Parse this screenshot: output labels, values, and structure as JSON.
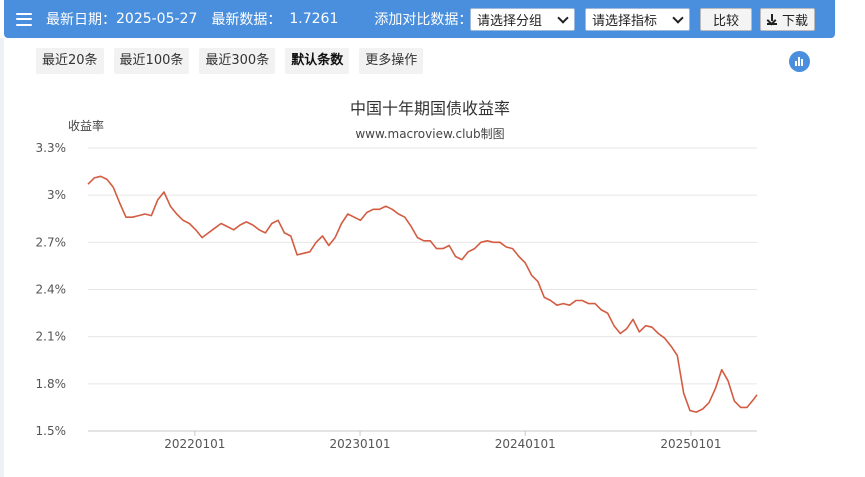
{
  "toolbar": {
    "latest_date_label": "最新日期：",
    "latest_date": "2025-05-27",
    "latest_value_label": "最新数据：",
    "latest_value": "1.7261",
    "compare_label": "添加对比数据：",
    "group_select": "请选择分组",
    "indicator_select": "请选择指标",
    "compare_button": "比较",
    "download_button": "下载"
  },
  "range_tabs": [
    "最近20条",
    "最近100条",
    "最近300条",
    "默认条数",
    "更多操作"
  ],
  "active_tab": "默认条数",
  "colors": {
    "bar": "#4a8fde",
    "line": "#d35c42"
  },
  "chart_data": {
    "type": "line",
    "title": "中国十年期国债收益率",
    "subtitle": "www.macroview.club制图",
    "ylabel": "收益率",
    "xlabel": "",
    "ylim": [
      1.5,
      3.3
    ],
    "y_ticks": [
      "3.3%",
      "3%",
      "2.7%",
      "2.4%",
      "2.1%",
      "1.8%",
      "1.5%"
    ],
    "y_tick_values": [
      3.3,
      3.0,
      2.7,
      2.4,
      2.1,
      1.8,
      1.5
    ],
    "x_ticks": [
      "20220101",
      "20230101",
      "20240101",
      "20250101"
    ],
    "x_tick_dates": [
      "2022-01-01",
      "2023-01-01",
      "2024-01-01",
      "2025-01-01"
    ],
    "xlim": [
      "2021-05-10",
      "2025-05-27"
    ],
    "grid": true,
    "series": [
      {
        "x": [
          "2021-05-10",
          "2021-05-24",
          "2021-06-07",
          "2021-06-21",
          "2021-07-05",
          "2021-07-19",
          "2021-08-02",
          "2021-08-16",
          "2021-08-30",
          "2021-09-13",
          "2021-09-27",
          "2021-10-11",
          "2021-10-25",
          "2021-11-08",
          "2021-11-22",
          "2021-12-06",
          "2021-12-20",
          "2022-01-03",
          "2022-01-17",
          "2022-01-31",
          "2022-02-14",
          "2022-02-28",
          "2022-03-14",
          "2022-03-28",
          "2022-04-11",
          "2022-04-25",
          "2022-05-09",
          "2022-05-23",
          "2022-06-06",
          "2022-06-20",
          "2022-07-04",
          "2022-07-18",
          "2022-08-01",
          "2022-08-15",
          "2022-08-29",
          "2022-09-12",
          "2022-09-26",
          "2022-10-10",
          "2022-10-24",
          "2022-11-07",
          "2022-11-21",
          "2022-12-05",
          "2022-12-19",
          "2023-01-02",
          "2023-01-16",
          "2023-01-30",
          "2023-02-13",
          "2023-02-27",
          "2023-03-13",
          "2023-03-27",
          "2023-04-10",
          "2023-04-24",
          "2023-05-08",
          "2023-05-22",
          "2023-06-05",
          "2023-06-19",
          "2023-07-03",
          "2023-07-17",
          "2023-07-31",
          "2023-08-14",
          "2023-08-28",
          "2023-09-11",
          "2023-09-25",
          "2023-10-09",
          "2023-10-23",
          "2023-11-06",
          "2023-11-20",
          "2023-12-04",
          "2023-12-18",
          "2024-01-01",
          "2024-01-15",
          "2024-01-29",
          "2024-02-12",
          "2024-02-26",
          "2024-03-11",
          "2024-03-25",
          "2024-04-08",
          "2024-04-22",
          "2024-05-06",
          "2024-05-20",
          "2024-06-03",
          "2024-06-17",
          "2024-07-01",
          "2024-07-15",
          "2024-07-29",
          "2024-08-12",
          "2024-08-26",
          "2024-09-09",
          "2024-09-23",
          "2024-10-07",
          "2024-10-21",
          "2024-11-04",
          "2024-11-18",
          "2024-12-02",
          "2024-12-16",
          "2024-12-30",
          "2025-01-13",
          "2025-01-27",
          "2025-02-10",
          "2025-02-24",
          "2025-03-10",
          "2025-03-24",
          "2025-04-07",
          "2025-04-21",
          "2025-05-05",
          "2025-05-19",
          "2025-05-27"
        ],
        "values": [
          3.07,
          3.11,
          3.12,
          3.1,
          3.05,
          2.95,
          2.86,
          2.86,
          2.87,
          2.88,
          2.87,
          2.97,
          3.02,
          2.93,
          2.88,
          2.84,
          2.82,
          2.78,
          2.73,
          2.76,
          2.79,
          2.82,
          2.8,
          2.78,
          2.81,
          2.83,
          2.81,
          2.78,
          2.76,
          2.82,
          2.84,
          2.76,
          2.74,
          2.62,
          2.63,
          2.64,
          2.7,
          2.74,
          2.68,
          2.73,
          2.82,
          2.88,
          2.86,
          2.84,
          2.89,
          2.91,
          2.91,
          2.93,
          2.91,
          2.88,
          2.86,
          2.8,
          2.73,
          2.71,
          2.71,
          2.66,
          2.66,
          2.68,
          2.61,
          2.59,
          2.64,
          2.66,
          2.7,
          2.71,
          2.7,
          2.7,
          2.67,
          2.66,
          2.61,
          2.57,
          2.49,
          2.45,
          2.35,
          2.33,
          2.3,
          2.31,
          2.3,
          2.33,
          2.33,
          2.31,
          2.31,
          2.27,
          2.25,
          2.17,
          2.12,
          2.15,
          2.21,
          2.13,
          2.17,
          2.16,
          2.12,
          2.09,
          2.04,
          1.98,
          1.74,
          1.63,
          1.62,
          1.64,
          1.68,
          1.77,
          1.89,
          1.82,
          1.69,
          1.65,
          1.65,
          1.7,
          1.73
        ]
      }
    ]
  }
}
